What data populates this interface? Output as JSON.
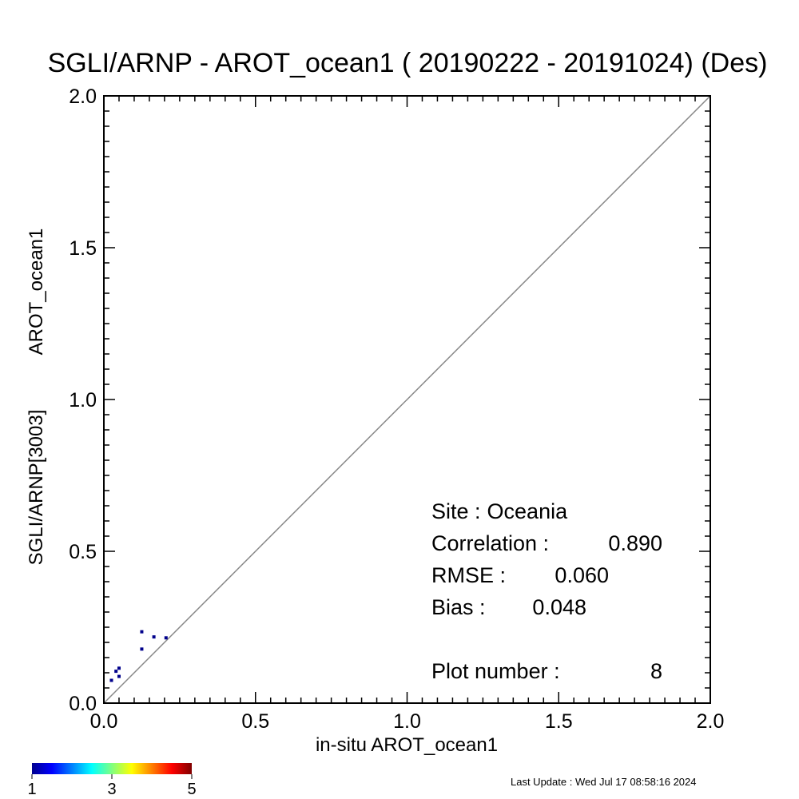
{
  "chart_data": {
    "type": "scatter",
    "title": "SGLI/ARNP - AROT_ocean1 ( 20190222 - 20191024) (Des)",
    "xlabel": "in-situ AROT_ocean1",
    "ylabel_line1": "SGLI/ARNP[3003]",
    "ylabel_line2": "AROT_ocean1",
    "xlim": [
      0.0,
      2.0
    ],
    "ylim": [
      0.0,
      2.0
    ],
    "x_ticks": [
      0.0,
      0.5,
      1.0,
      1.5,
      2.0
    ],
    "y_ticks": [
      0.0,
      0.5,
      1.0,
      1.5,
      2.0
    ],
    "x_tick_labels": [
      "0.0",
      "0.5",
      "1.0",
      "1.5",
      "2.0"
    ],
    "y_tick_labels": [
      "0.0",
      "0.5",
      "1.0",
      "1.5",
      "2.0"
    ],
    "reference_line": "1:1",
    "reference_line_color": "#888888",
    "point_color": "#00008b",
    "points": [
      {
        "x": 0.025,
        "y": 0.075
      },
      {
        "x": 0.04,
        "y": 0.105
      },
      {
        "x": 0.05,
        "y": 0.115
      },
      {
        "x": 0.05,
        "y": 0.088
      },
      {
        "x": 0.125,
        "y": 0.235
      },
      {
        "x": 0.125,
        "y": 0.178
      },
      {
        "x": 0.165,
        "y": 0.218
      },
      {
        "x": 0.205,
        "y": 0.215
      }
    ],
    "stats": {
      "site_label": "Site :",
      "site_value": "Oceania",
      "correlation_label": "Correlation :",
      "correlation_value": "0.890",
      "rmse_label": "RMSE :",
      "rmse_value": "0.060",
      "bias_label": "Bias :",
      "bias_value": "0.048",
      "plot_number_label": "Plot number :",
      "plot_number_value": "8"
    },
    "colorbar": {
      "tick_labels": [
        "1",
        "3",
        "5"
      ],
      "colors": [
        "#00008f",
        "#0000ff",
        "#0080ff",
        "#00ffff",
        "#80ff80",
        "#ffff00",
        "#ff8000",
        "#ff0000",
        "#800000"
      ]
    }
  },
  "footer": {
    "last_update": "Last Update : Wed Jul 17 08:58:16 2024"
  }
}
